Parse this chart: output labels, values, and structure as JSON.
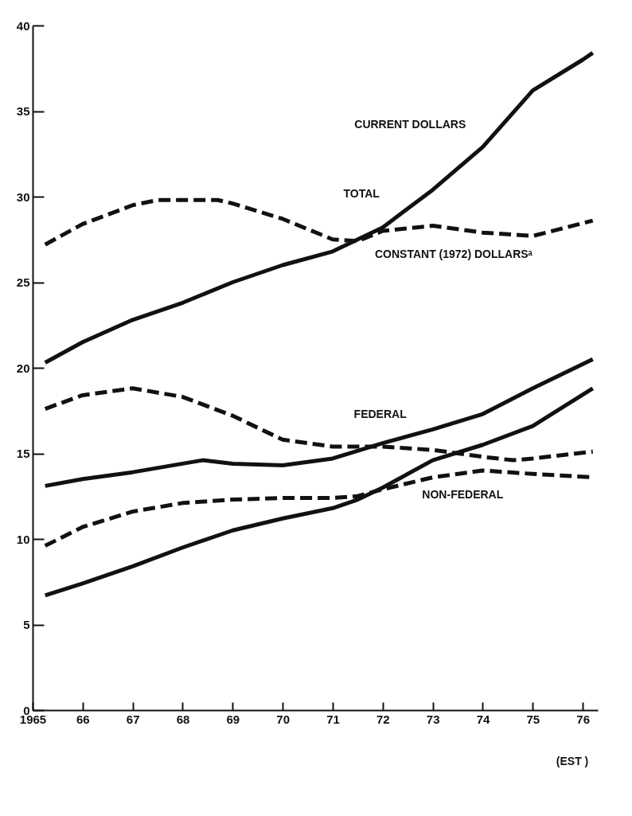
{
  "chart_data": {
    "type": "line",
    "xlim": [
      1965,
      1976.3
    ],
    "ylim": [
      0,
      40
    ],
    "xticks": [
      {
        "value": 1965,
        "label": "1965"
      },
      {
        "value": 1966,
        "label": "66"
      },
      {
        "value": 1967,
        "label": "67"
      },
      {
        "value": 1968,
        "label": "68"
      },
      {
        "value": 1969,
        "label": "69"
      },
      {
        "value": 1970,
        "label": "70"
      },
      {
        "value": 1971,
        "label": "71"
      },
      {
        "value": 1972,
        "label": "72"
      },
      {
        "value": 1973,
        "label": "73"
      },
      {
        "value": 1974,
        "label": "74"
      },
      {
        "value": 1975,
        "label": "75"
      },
      {
        "value": 1976,
        "label": "76"
      }
    ],
    "yticks": [
      0,
      5,
      10,
      15,
      20,
      25,
      30,
      35,
      40
    ],
    "grid": false,
    "marker": "none",
    "series": [
      {
        "color": "#111111",
        "line_style": "solid",
        "x": [
          1965.25,
          1966,
          1967,
          1968,
          1969,
          1970,
          1971,
          1972,
          1973,
          1974,
          1975,
          1976,
          1976.2
        ],
        "values": [
          20.3,
          21.5,
          22.8,
          23.8,
          25.0,
          26.0,
          26.8,
          28.2,
          30.4,
          32.9,
          36.2,
          38.0,
          38.4
        ]
      },
      {
        "color": "#111111",
        "line_style": "dashed",
        "x": [
          1965.25,
          1966,
          1967,
          1967.5,
          1968,
          1968.7,
          1969,
          1970,
          1971,
          1971.5,
          1972,
          1973,
          1974,
          1975,
          1976.2
        ],
        "values": [
          27.2,
          28.4,
          29.5,
          29.8,
          29.8,
          29.8,
          29.6,
          28.7,
          27.5,
          27.4,
          28.0,
          28.3,
          27.9,
          27.7,
          28.6
        ]
      },
      {
        "color": "#111111",
        "line_style": "solid",
        "x": [
          1965.25,
          1966,
          1967,
          1968,
          1968.4,
          1969,
          1970,
          1971,
          1972,
          1973,
          1974,
          1975,
          1976.2
        ],
        "values": [
          13.1,
          13.5,
          13.9,
          14.4,
          14.6,
          14.4,
          14.3,
          14.7,
          15.6,
          16.4,
          17.3,
          18.8,
          20.5
        ]
      },
      {
        "color": "#111111",
        "line_style": "dashed",
        "x": [
          1965.25,
          1966,
          1967,
          1968,
          1969,
          1970,
          1971,
          1972,
          1973,
          1974,
          1974.6,
          1975,
          1976.2
        ],
        "values": [
          17.6,
          18.4,
          18.8,
          18.3,
          17.2,
          15.8,
          15.4,
          15.4,
          15.2,
          14.8,
          14.6,
          14.7,
          15.1
        ]
      },
      {
        "color": "#111111",
        "line_style": "solid",
        "x": [
          1965.25,
          1966,
          1967,
          1968,
          1969,
          1970,
          1971,
          1971.5,
          1972,
          1973,
          1974,
          1975,
          1976.2
        ],
        "values": [
          6.7,
          7.4,
          8.4,
          9.5,
          10.5,
          11.2,
          11.8,
          12.3,
          13.0,
          14.6,
          15.5,
          16.6,
          18.8
        ]
      },
      {
        "color": "#111111",
        "line_style": "dashed",
        "x": [
          1965.25,
          1966,
          1967,
          1968,
          1969,
          1970,
          1971,
          1971.5,
          1972,
          1973,
          1974,
          1975,
          1976.2
        ],
        "values": [
          9.6,
          10.7,
          11.6,
          12.1,
          12.3,
          12.4,
          12.4,
          12.5,
          12.9,
          13.6,
          14.0,
          13.8,
          13.6
        ]
      }
    ],
    "annotations": [
      "CURRENT DOLLARS",
      "TOTAL",
      "CONSTANT (1972) DOLLARSᵃ",
      "FEDERAL",
      "NON-FEDERAL",
      "(EST )"
    ]
  }
}
